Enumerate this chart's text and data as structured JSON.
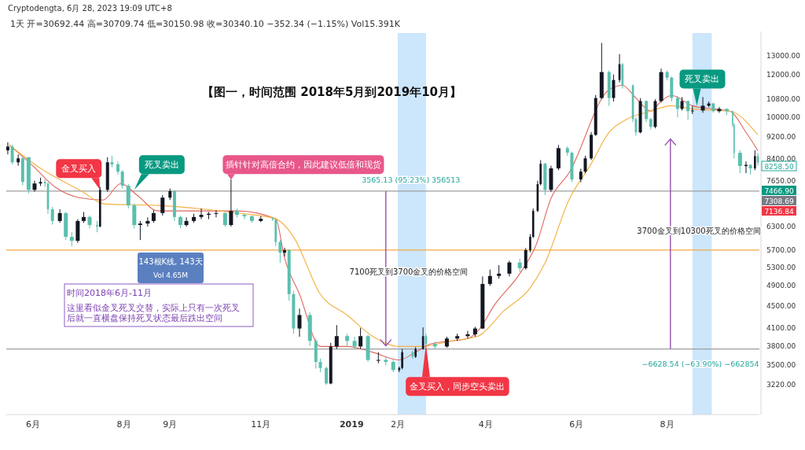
{
  "chart_data": {
    "type": "candlestick",
    "title": "【图一，时间范围 2018年5月到2019年10月】",
    "subtitle": "1天  开=30692.44  高=30709.74  低=30150.98  收=30340.10  −352.34 (−1.15%)  Vol15.391K",
    "x": [
      "2018-05-15",
      "2018-05-18",
      "2018-05-22",
      "2018-05-25",
      "2018-05-29",
      "2018-06-02",
      "2018-06-06",
      "2018-06-09",
      "2018-06-11",
      "2018-06-14",
      "2018-06-19",
      "2018-06-23",
      "2018-06-27",
      "2018-07-01",
      "2018-07-05",
      "2018-07-09",
      "2018-07-14",
      "2018-07-16",
      "2018-07-21",
      "2018-07-24",
      "2018-07-28",
      "2018-07-31",
      "2018-08-04",
      "2018-08-08",
      "2018-08-12",
      "2018-08-17",
      "2018-08-21",
      "2018-08-27",
      "2018-09-01",
      "2018-09-04",
      "2018-09-08",
      "2018-09-12",
      "2018-09-17",
      "2018-09-22",
      "2018-09-27",
      "2018-10-02",
      "2018-10-08",
      "2018-10-12",
      "2018-10-16",
      "2018-10-21",
      "2018-10-26",
      "2018-11-01",
      "2018-11-09",
      "2018-11-11",
      "2018-11-14",
      "2018-11-17",
      "2018-11-20",
      "2018-11-23",
      "2018-11-27",
      "2018-12-04",
      "2018-12-08",
      "2018-12-11",
      "2018-12-15",
      "2018-12-18",
      "2018-12-22",
      "2018-12-29",
      "2019-01-03",
      "2019-01-07",
      "2019-01-12",
      "2019-01-19",
      "2019-01-24",
      "2019-01-29",
      "2019-02-02",
      "2019-02-04",
      "2019-02-11",
      "2019-02-13",
      "2019-02-18",
      "2019-02-20",
      "2019-02-26",
      "2019-03-06",
      "2019-03-13",
      "2019-03-20",
      "2019-03-25",
      "2019-03-30",
      "2019-04-04",
      "2019-04-10",
      "2019-04-17",
      "2019-04-24",
      "2019-04-28",
      "2019-05-01",
      "2019-05-03",
      "2019-05-06",
      "2019-05-08",
      "2019-05-11",
      "2019-05-15",
      "2019-05-20",
      "2019-05-26",
      "2019-05-29",
      "2019-06-04",
      "2019-06-07",
      "2019-06-11",
      "2019-06-14",
      "2019-06-18",
      "2019-06-23",
      "2019-06-26",
      "2019-06-30",
      "2019-07-02",
      "2019-07-09",
      "2019-07-11",
      "2019-07-14",
      "2019-07-18",
      "2019-07-21",
      "2019-07-24",
      "2019-07-28",
      "2019-08-01",
      "2019-08-04",
      "2019-08-08",
      "2019-08-11",
      "2019-08-15",
      "2019-08-18",
      "2019-08-25",
      "2019-08-29",
      "2019-09-01",
      "2019-09-05",
      "2019-09-10",
      "2019-09-14",
      "2019-09-15",
      "2019-09-19",
      "2019-09-23",
      "2019-09-26",
      "2019-09-29",
      "2019-10-01"
    ],
    "ohlc": [
      [
        8700,
        9000,
        8550,
        8840
      ],
      [
        8840,
        8900,
        8200,
        8270
      ],
      [
        8270,
        8550,
        8150,
        8410
      ],
      [
        8410,
        8450,
        7500,
        7610
      ],
      [
        8450,
        8450,
        7250,
        7360
      ],
      [
        7360,
        7650,
        7300,
        7560
      ],
      [
        7560,
        7750,
        7480,
        7610
      ],
      [
        7610,
        7700,
        7450,
        7560
      ],
      [
        7560,
        7600,
        6650,
        6780
      ],
      [
        6780,
        6850,
        6350,
        6450
      ],
      [
        6450,
        6780,
        6400,
        6670
      ],
      [
        6670,
        6700,
        5950,
        6030
      ],
      [
        6030,
        6150,
        5800,
        5930
      ],
      [
        5930,
        6500,
        5880,
        6450
      ],
      [
        6450,
        6700,
        6400,
        6560
      ],
      [
        6560,
        6600,
        6250,
        6340
      ],
      [
        6340,
        6450,
        6150,
        6300
      ],
      [
        6300,
        7450,
        6280,
        7360
      ],
      [
        7360,
        8450,
        7300,
        8270
      ],
      [
        8270,
        8500,
        8100,
        8200
      ],
      [
        8200,
        8300,
        7850,
        7950
      ],
      [
        7950,
        8000,
        7400,
        7490
      ],
      [
        7490,
        7550,
        6800,
        6890
      ],
      [
        6890,
        6950,
        6250,
        6340
      ],
      [
        6340,
        6450,
        5950,
        6380
      ],
      [
        6380,
        6550,
        6300,
        6450
      ],
      [
        6450,
        6750,
        6400,
        6670
      ],
      [
        6670,
        7200,
        6600,
        7120
      ],
      [
        7120,
        7400,
        7050,
        7320
      ],
      [
        7320,
        7350,
        6450,
        6560
      ],
      [
        6560,
        6600,
        6250,
        6340
      ],
      [
        6340,
        6550,
        6300,
        6450
      ],
      [
        6450,
        6650,
        6400,
        6560
      ],
      [
        6560,
        6800,
        6500,
        6620
      ],
      [
        6620,
        6700,
        6500,
        6650
      ],
      [
        6650,
        6750,
        6550,
        6670
      ],
      [
        6670,
        6700,
        6300,
        6340
      ],
      [
        6340,
        7690,
        6300,
        6730
      ],
      [
        6730,
        6800,
        6550,
        6620
      ],
      [
        6620,
        6650,
        6500,
        6580
      ],
      [
        6580,
        6600,
        6400,
        6450
      ],
      [
        6450,
        6580,
        6420,
        6510
      ],
      [
        6510,
        6560,
        6450,
        6490
      ],
      [
        6490,
        6530,
        5800,
        5900
      ],
      [
        5900,
        5950,
        5400,
        5640
      ],
      [
        5640,
        5760,
        5550,
        5700
      ],
      [
        5700,
        5720,
        4600,
        4730
      ],
      [
        4730,
        4800,
        4000,
        4090
      ],
      [
        4090,
        4450,
        3950,
        4330
      ],
      [
        4330,
        4380,
        3800,
        3880
      ],
      [
        3880,
        3920,
        3450,
        3550
      ],
      [
        3550,
        3600,
        3400,
        3460
      ],
      [
        3460,
        3480,
        3220,
        3240
      ],
      [
        3240,
        3850,
        3230,
        3790
      ],
      [
        3790,
        4150,
        3750,
        3960
      ],
      [
        3960,
        4000,
        3800,
        3880
      ],
      [
        3880,
        3950,
        3750,
        3790
      ],
      [
        3790,
        4100,
        3750,
        3960
      ],
      [
        3960,
        3980,
        3550,
        3580
      ],
      [
        3580,
        3700,
        3530,
        3580
      ],
      [
        3580,
        3620,
        3500,
        3550
      ],
      [
        3550,
        3580,
        3400,
        3430
      ],
      [
        3430,
        3480,
        3400,
        3460
      ],
      [
        3460,
        3750,
        3440,
        3700
      ],
      [
        3700,
        3720,
        3600,
        3630
      ],
      [
        3630,
        3780,
        3610,
        3750
      ],
      [
        3750,
        4110,
        3740,
        3960
      ],
      [
        3960,
        4000,
        3800,
        3830
      ],
      [
        3830,
        3870,
        3750,
        3790
      ],
      [
        3790,
        3950,
        3770,
        3920
      ],
      [
        3920,
        4000,
        3880,
        3960
      ],
      [
        3960,
        4050,
        3920,
        3990
      ],
      [
        3990,
        4120,
        3950,
        4090
      ],
      [
        4090,
        5100,
        4080,
        4940
      ],
      [
        4940,
        5250,
        4900,
        5110
      ],
      [
        5110,
        5350,
        5050,
        5160
      ],
      [
        5160,
        5450,
        5100,
        5410
      ],
      [
        5410,
        5500,
        5200,
        5280
      ],
      [
        5280,
        5750,
        5250,
        5700
      ],
      [
        5700,
        6100,
        5650,
        6030
      ],
      [
        6030,
        6800,
        6000,
        6730
      ],
      [
        6730,
        7650,
        6700,
        7540
      ],
      [
        7540,
        8350,
        7500,
        8220
      ],
      [
        8220,
        8250,
        7200,
        7360
      ],
      [
        7360,
        8150,
        7300,
        8060
      ],
      [
        8060,
        8900,
        8000,
        8780
      ],
      [
        8780,
        8850,
        8500,
        8610
      ],
      [
        8610,
        8650,
        7600,
        7690
      ],
      [
        7690,
        8050,
        7600,
        7950
      ],
      [
        7950,
        8500,
        7900,
        8410
      ],
      [
        8410,
        9400,
        8350,
        9290
      ],
      [
        9290,
        11000,
        9250,
        10860
      ],
      [
        10860,
        13710,
        10800,
        12120
      ],
      [
        12120,
        12200,
        10500,
        10860
      ],
      [
        10860,
        12000,
        10700,
        11720
      ],
      [
        11720,
        13080,
        11600,
        12530
      ],
      [
        12530,
        12600,
        11300,
        11460
      ],
      [
        11460,
        11500,
        9800,
        9930
      ],
      [
        9930,
        10000,
        9250,
        9390
      ],
      [
        9390,
        10850,
        9350,
        10720
      ],
      [
        10720,
        10750,
        9800,
        9930
      ],
      [
        9930,
        9990,
        9500,
        9610
      ],
      [
        9610,
        10800,
        9550,
        10720
      ],
      [
        10720,
        12300,
        10650,
        12120
      ],
      [
        12120,
        12200,
        11700,
        11840
      ],
      [
        11840,
        11900,
        10700,
        10860
      ],
      [
        10860,
        10950,
        10000,
        10370
      ],
      [
        10370,
        10900,
        10300,
        10720
      ],
      [
        10720,
        10750,
        9900,
        10270
      ],
      [
        10270,
        10500,
        10150,
        10300
      ],
      [
        10300,
        10900,
        10200,
        10510
      ],
      [
        10510,
        10700,
        10450,
        10610
      ],
      [
        10610,
        10650,
        10200,
        10270
      ],
      [
        10270,
        10450,
        10200,
        10370
      ],
      [
        10370,
        10400,
        10100,
        10270
      ],
      [
        10270,
        10300,
        9600,
        9700
      ],
      [
        9700,
        9750,
        8400,
        8610
      ],
      [
        8610,
        8700,
        7900,
        8140
      ],
      [
        8140,
        8300,
        7900,
        8180
      ],
      [
        8180,
        8200,
        7850,
        8060
      ],
      [
        8060,
        8700,
        8000,
        8490
      ],
      [
        8490,
        8600,
        8150,
        8258.5
      ]
    ],
    "series": [
      {
        "type": "line",
        "color": "#e0675f",
        "x": [
          "2018-05-16",
          "2018-06-01",
          "2018-06-16",
          "2018-07-02",
          "2018-07-18",
          "2018-07-30",
          "2018-08-10",
          "2018-08-24",
          "2018-09-10",
          "2018-10-16",
          "2018-11-11",
          "2018-11-17",
          "2018-11-27",
          "2018-12-11",
          "2018-12-29",
          "2019-01-15",
          "2019-02-02",
          "2019-02-13",
          "2019-02-23",
          "2019-03-20",
          "2019-03-27",
          "2019-04-07",
          "2019-04-24",
          "2019-05-05",
          "2019-05-15",
          "2019-05-27",
          "2019-06-14",
          "2019-06-23",
          "2019-07-02",
          "2019-07-11",
          "2019-07-21",
          "2019-07-28",
          "2019-08-04",
          "2019-08-18",
          "2019-09-01",
          "2019-09-12",
          "2019-09-23",
          "2019-10-01"
        ],
        "values": [
          8900,
          8140,
          7440,
          7120,
          7050,
          7560,
          7190,
          6730,
          6730,
          6730,
          6510,
          5510,
          4730,
          3790,
          3790,
          3700,
          3580,
          3700,
          3830,
          3920,
          4050,
          4520,
          5160,
          5830,
          7100,
          7900,
          null,
          11250,
          11460,
          10860,
          10270,
          10720,
          10980,
          10510,
          10370,
          10270,
          9390,
          8690
        ]
      },
      {
        "type": "line",
        "color": "#f5b041",
        "x": [
          "2018-05-16",
          "2018-06-06",
          "2018-07-02",
          "2018-07-20",
          "2018-08-24",
          "2018-10-16",
          "2018-11-11",
          "2018-11-23",
          "2018-12-11",
          "2018-12-29",
          "2019-01-15",
          "2019-02-02",
          "2019-02-16",
          "2019-03-09",
          "2019-03-27",
          "2019-04-13",
          "2019-05-01",
          "2019-05-11",
          "2019-05-27",
          "2019-06-11",
          "2019-06-23",
          "2019-07-05",
          "2019-07-21",
          "2019-08-04",
          "2019-08-18",
          "2019-09-12",
          "2019-10-01"
        ],
        "values": [
          8900,
          8060,
          7360,
          6930,
          6890,
          6670,
          6510,
          6030,
          4730,
          4330,
          3960,
          3790,
          3790,
          3880,
          3960,
          4400,
          4860,
          5400,
          7050,
          8220,
          9390,
          9930,
          10270,
          10510,
          10370,
          10270,
          9290
        ]
      }
    ],
    "log": true,
    "xlim": [
      "2018-05-14",
      "2019-10-02"
    ],
    "xticks": [
      {
        "value": "2018-06-01",
        "label": "6月"
      },
      {
        "value": "2018-08-01",
        "label": "8月"
      },
      {
        "value": "2018-09-01",
        "label": "9月"
      },
      {
        "value": "2018-11-01",
        "label": "11月"
      },
      {
        "value": "2019-01-01",
        "label": "2019"
      },
      {
        "value": "2019-02-01",
        "label": "2月"
      },
      {
        "value": "2019-04-01",
        "label": "4月"
      },
      {
        "value": "2019-06-01",
        "label": "6月"
      },
      {
        "value": "2019-08-01",
        "label": "8月"
      }
    ],
    "ylim": [
      2840,
      14300
    ],
    "yticks": [
      {
        "value": 3220,
        "label": "3220.00"
      },
      {
        "value": 3500,
        "label": "3500.00"
      },
      {
        "value": 3800,
        "label": "3800.00"
      },
      {
        "value": 4100,
        "label": "4100.00"
      },
      {
        "value": 4500,
        "label": "4500.00"
      },
      {
        "value": 4900,
        "label": "4900.00"
      },
      {
        "value": 5300,
        "label": "5300.00"
      },
      {
        "value": 5700,
        "label": "5700.00"
      },
      {
        "value": 6300,
        "label": "6300.00"
      },
      {
        "value": 7650,
        "label": "7650.00"
      },
      {
        "value": 8400,
        "label": "8400.00"
      },
      {
        "value": 9200,
        "label": "9200.00"
      },
      {
        "value": 10000,
        "label": "10000.00"
      },
      {
        "value": 10800,
        "label": "10800.00"
      },
      {
        "value": 12000,
        "label": "12000.00"
      },
      {
        "value": 13000,
        "label": "13000.00"
      }
    ],
    "ref_lines": [
      {
        "axis": "y",
        "value": 7320,
        "color": "#9e9e9e"
      },
      {
        "axis": "y",
        "value": 5700,
        "color": "#f5a742"
      },
      {
        "axis": "y",
        "value": 3750,
        "color": "#9e9e9e"
      }
    ],
    "bands": [
      {
        "axis": "x",
        "from": "2019-02-01",
        "to": "2019-02-20",
        "color": "#bbdefb"
      },
      {
        "axis": "x",
        "from": "2019-08-18",
        "to": "2019-08-31",
        "color": "#bbdefb"
      }
    ],
    "annotations": [
      "Cryptodengta, 6月 28, 2023 19:09 UTC+8",
      {
        "text": "金叉买入",
        "x": "2018-07-16",
        "y": 7360
      },
      {
        "text": "死叉卖出",
        "x": "2018-08-08",
        "y": 7360
      },
      {
        "text": "插针针对高倍合约，因此建议低倍和现货",
        "x": "2018-10-12",
        "y": 7690
      },
      {
        "text": "3565.13 (95.23%) 356513",
        "x": "2019-01-24",
        "y": 7320
      },
      "143根K线, 143天",
      "Vol 4.65M",
      "时间2018年6月-11月",
      "这里看似金叉死叉交替，实际上只有一次死叉后就一直横盘保持死叉状态最后跌出空间",
      "7100死叉到3700金叉的价格空间",
      {
        "text": "金叉买入，同步空头卖出",
        "x": "2019-02-20",
        "y": 3830
      },
      "3700金叉到10300死叉的价格空间",
      "−6628.54 (−63.90%) −662854",
      {
        "text": "死叉卖出",
        "x": "2019-08-21",
        "y": 10510
      },
      "8258.50",
      "7466.90",
      "7308.69",
      "7136.84"
    ]
  }
}
